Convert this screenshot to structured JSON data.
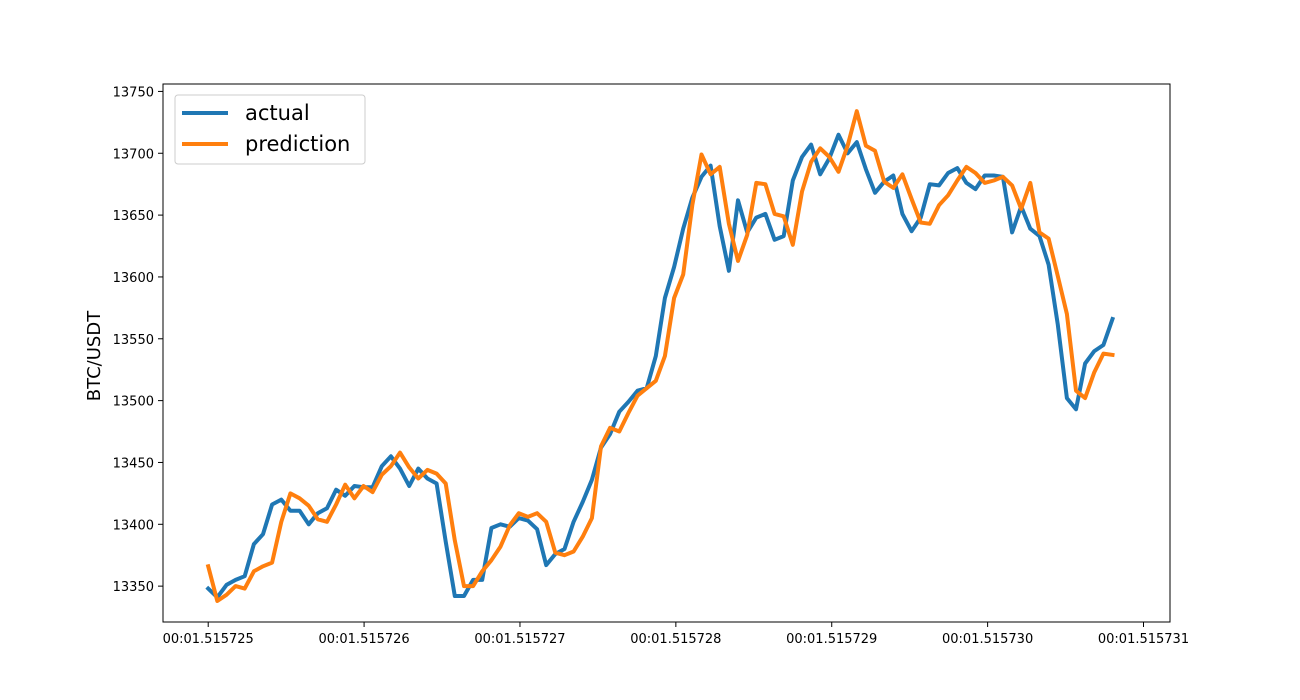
{
  "chart_data": {
    "type": "line",
    "title": "",
    "xlabel": "",
    "ylabel": "BTC/USDT",
    "xlim": [
      -0.29,
      6.17
    ],
    "ylim": [
      13321,
      13756
    ],
    "x_ticks": [
      0,
      1,
      2,
      3,
      4,
      5,
      6
    ],
    "x_tick_labels": [
      "00:01.515725",
      "00:01.515726",
      "00:01.515727",
      "00:01.515728",
      "00:01.515729",
      "00:01.515730",
      "00:01.515731"
    ],
    "y_ticks": [
      13350,
      13400,
      13450,
      13500,
      13550,
      13600,
      13650,
      13700,
      13750
    ],
    "x_step": 0.0586,
    "legend_position": "upper-left",
    "grid": false,
    "series": [
      {
        "name": "actual",
        "color": "#1f77b4",
        "values": [
          13348,
          13341,
          13351,
          13355,
          13358,
          13384,
          13392,
          13416,
          13420,
          13411,
          13411,
          13400,
          13409,
          13413,
          13428,
          13423,
          13431,
          13430,
          13430,
          13447,
          13455,
          13445,
          13431,
          13445,
          13437,
          13433,
          13386,
          13342,
          13342,
          13355,
          13355,
          13397,
          13400,
          13398,
          13405,
          13403,
          13396,
          13367,
          13376,
          13380,
          13402,
          13418,
          13436,
          13462,
          13473,
          13491,
          13499,
          13508,
          13510,
          13536,
          13583,
          13608,
          13639,
          13664,
          13681,
          13690,
          13641,
          13605,
          13662,
          13636,
          13648,
          13651,
          13630,
          13633,
          13678,
          13697,
          13707,
          13683,
          13696,
          13715,
          13700,
          13709,
          13687,
          13668,
          13677,
          13682,
          13651,
          13637,
          13648,
          13675,
          13674,
          13684,
          13688,
          13676,
          13671,
          13682,
          13682,
          13681,
          13636,
          13657,
          13639,
          13633,
          13610,
          13562,
          13502,
          13493,
          13530,
          13540,
          13545,
          13566
        ]
      },
      {
        "name": "prediction",
        "color": "#ff7f0e",
        "values": [
          13366,
          13338,
          13343,
          13350,
          13348,
          13362,
          13366,
          13369,
          13402,
          13425,
          13421,
          13415,
          13404,
          13402,
          13416,
          13432,
          13421,
          13431,
          13426,
          13440,
          13447,
          13458,
          13446,
          13437,
          13444,
          13441,
          13433,
          13387,
          13350,
          13350,
          13362,
          13371,
          13382,
          13399,
          13409,
          13406,
          13409,
          13402,
          13377,
          13375,
          13378,
          13390,
          13405,
          13463,
          13478,
          13475,
          13490,
          13504,
          13510,
          13516,
          13536,
          13583,
          13602,
          13658,
          13699,
          13683,
          13689,
          13643,
          13613,
          13634,
          13676,
          13675,
          13651,
          13649,
          13626,
          13669,
          13693,
          13704,
          13697,
          13685,
          13706,
          13734,
          13706,
          13702,
          13677,
          13672,
          13683,
          13663,
          13644,
          13643,
          13658,
          13666,
          13678,
          13689,
          13684,
          13676,
          13678,
          13681,
          13674,
          13655,
          13676,
          13636,
          13631,
          13601,
          13570,
          13508,
          13502,
          13523,
          13538,
          13537
        ]
      }
    ]
  }
}
